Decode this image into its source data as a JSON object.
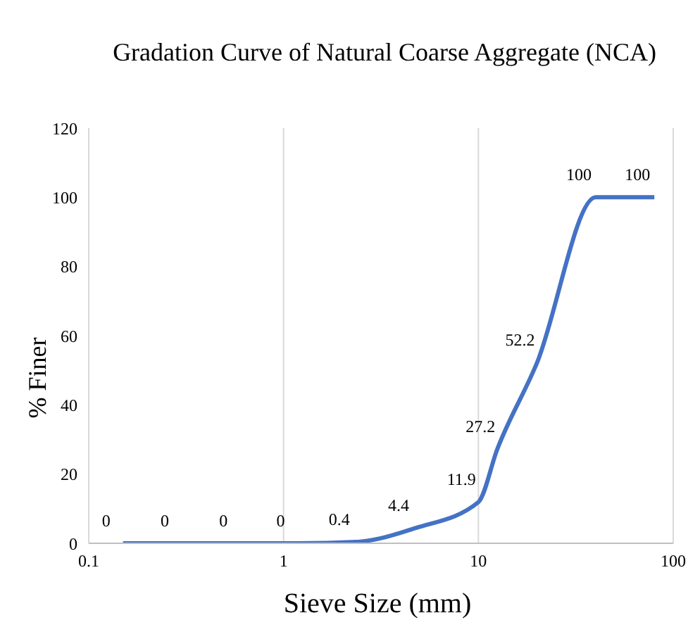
{
  "chart_data": {
    "type": "line",
    "title": "Gradation Curve of Natural Coarse Aggregate (NCA)",
    "xlabel": "Sieve Size (mm)",
    "ylabel": "% Finer",
    "x": [
      0.15,
      0.3,
      0.6,
      1.18,
      2.36,
      4.75,
      10,
      12.5,
      20,
      40,
      80
    ],
    "series": [
      {
        "color": "#4472c4",
        "values": [
          0,
          0,
          0,
          0,
          0.4,
          4.4,
          11.9,
          27.2,
          52.2,
          100,
          100
        ]
      }
    ],
    "log": "x",
    "xlim": [
      0.1,
      100
    ],
    "xticks": [
      0.1,
      1,
      10,
      100
    ],
    "ylim": [
      0,
      120
    ],
    "yticks": [
      0,
      20,
      40,
      60,
      80,
      100,
      120
    ],
    "grid": "x",
    "marker": "none",
    "line_style": "solid",
    "data_labels": true
  }
}
